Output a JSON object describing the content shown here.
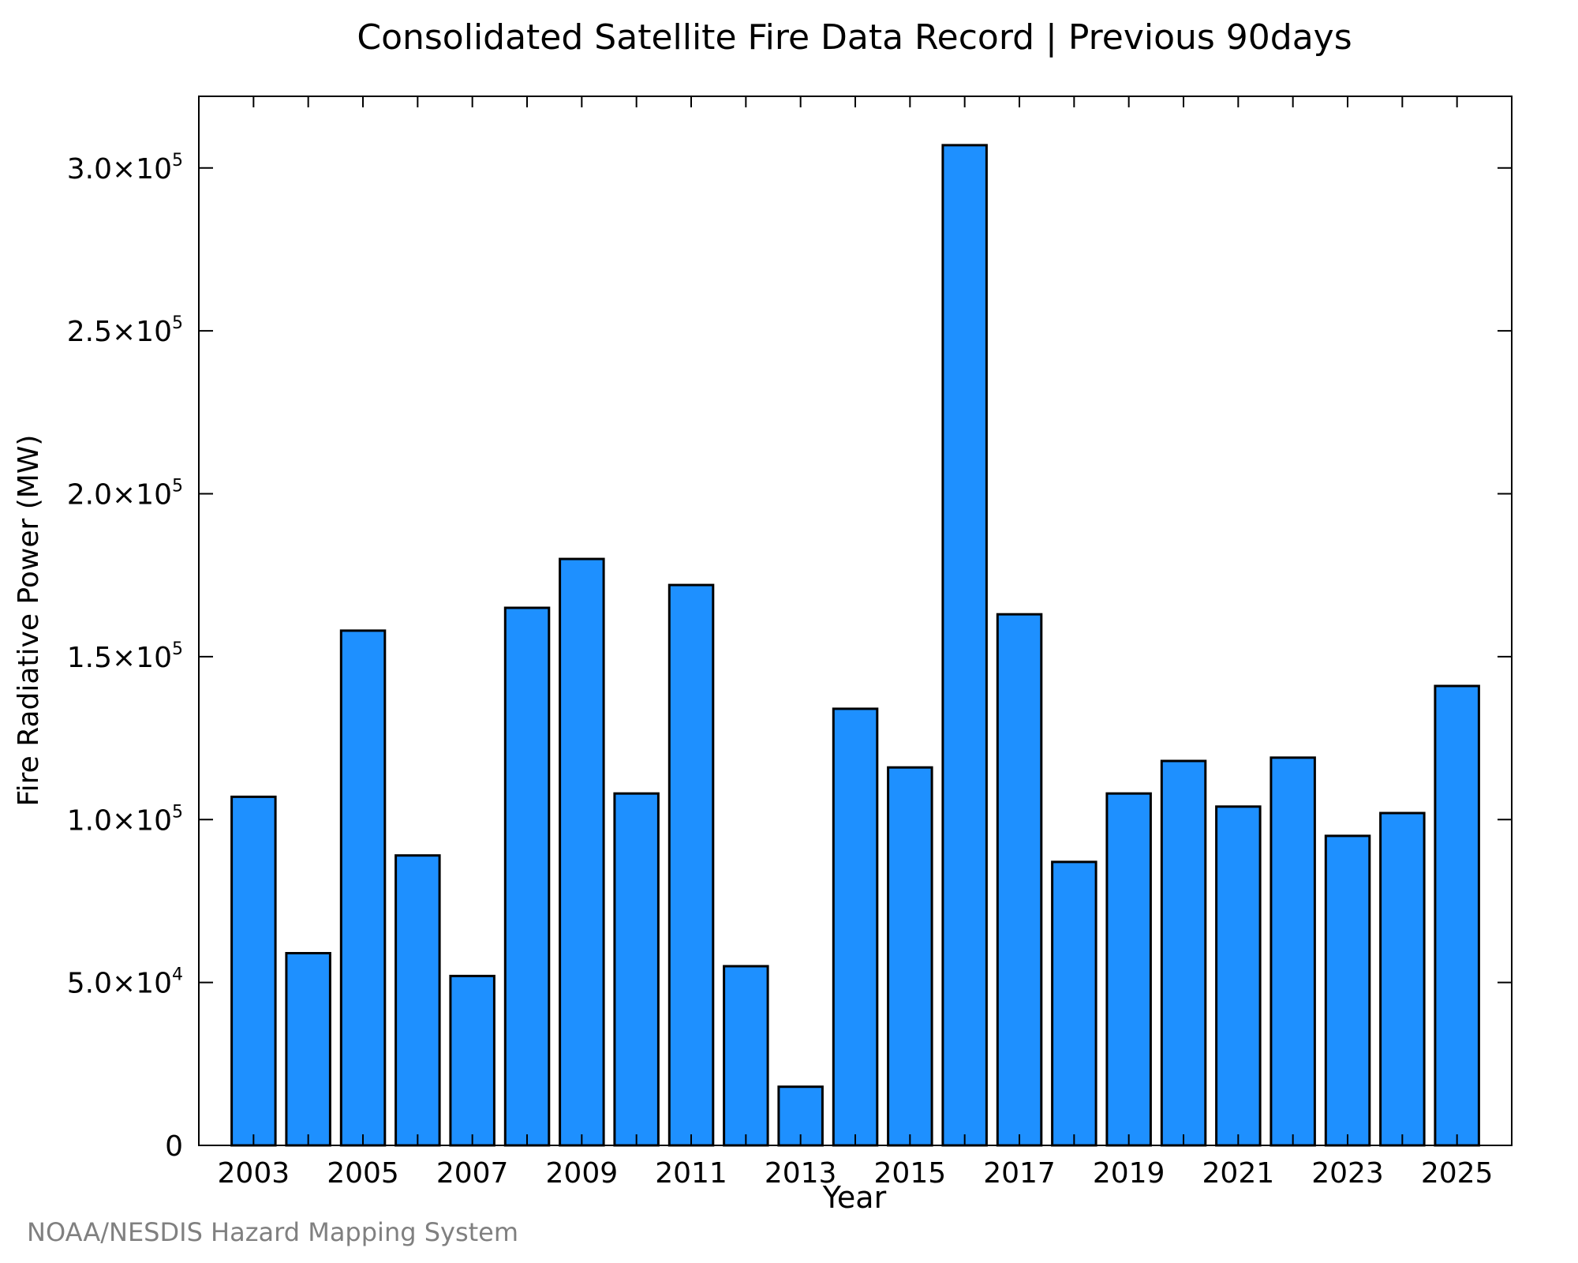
{
  "chart_data": {
    "type": "bar",
    "title": "Consolidated Satellite Fire Data Record | Previous 90days",
    "xlabel": "Year",
    "ylabel": "Fire Radiative Power (MW)",
    "credit": "NOAA/NESDIS Hazard Mapping System",
    "categories": [
      2003,
      2004,
      2005,
      2006,
      2007,
      2008,
      2009,
      2010,
      2011,
      2012,
      2013,
      2014,
      2015,
      2016,
      2017,
      2018,
      2019,
      2020,
      2021,
      2022,
      2023,
      2024,
      2025
    ],
    "values": [
      107000,
      59000,
      158000,
      89000,
      52000,
      165000,
      180000,
      108000,
      172000,
      55000,
      18000,
      134000,
      116000,
      307000,
      163000,
      87000,
      108000,
      118000,
      104000,
      119000,
      95000,
      102000,
      141000
    ],
    "xlim": [
      2002,
      2026
    ],
    "ylim": [
      0,
      322000
    ],
    "x_ticks": [
      2003,
      2005,
      2007,
      2009,
      2011,
      2013,
      2015,
      2017,
      2019,
      2021,
      2023,
      2025
    ],
    "y_ticks": [
      {
        "value": 0,
        "mantissa": "0",
        "exponent": ""
      },
      {
        "value": 50000,
        "mantissa": "5.0×10",
        "exponent": "4"
      },
      {
        "value": 100000,
        "mantissa": "1.0×10",
        "exponent": "5"
      },
      {
        "value": 150000,
        "mantissa": "1.5×10",
        "exponent": "5"
      },
      {
        "value": 200000,
        "mantissa": "2.0×10",
        "exponent": "5"
      },
      {
        "value": 250000,
        "mantissa": "2.5×10",
        "exponent": "5"
      },
      {
        "value": 300000,
        "mantissa": "3.0×10",
        "exponent": "5"
      }
    ],
    "bar_color": "#1e90ff",
    "edge_color": "#000000",
    "credit_color": "#808080",
    "grid": false,
    "legend": false
  }
}
